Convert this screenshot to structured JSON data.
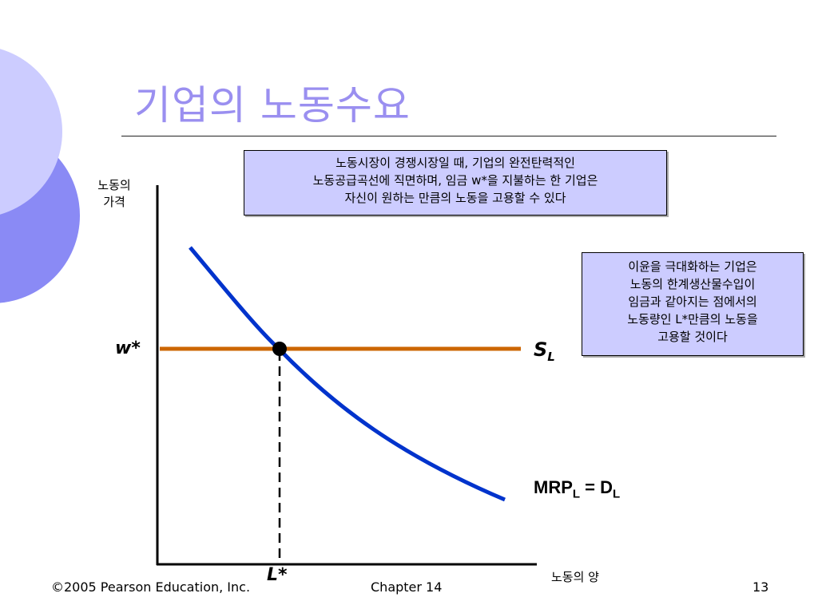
{
  "slide": {
    "title": "기업의 노동수요",
    "box1_lines": [
      "노동시장이 경쟁시장일 때, 기업의 완전탄력적인",
      "노동공급곡선에 직면하며, 임금 w*을 지불하는 한 기업은",
      "자신이 원하는 만큼의 노동을 고용할 수 있다"
    ],
    "box2_lines": [
      "이윤을 극대화하는 기업은",
      "노동의 한계생산물수입이",
      "임금과 같아지는 점에서의",
      "노동량인 L*만큼의 노동을",
      "고용할 것이다"
    ],
    "axis": {
      "y_label_1": "노동의",
      "y_label_2": "가격",
      "x_label": "노동의 양",
      "w_label": "w*",
      "l_label": "L*"
    },
    "curves": {
      "supply_main": "S",
      "supply_sub": "L",
      "demand_a": "MRP",
      "demand_a_sub": "L",
      "demand_eq": " = D",
      "demand_b_sub": "L"
    },
    "footer": {
      "copyright": "©2005 Pearson Education, Inc.",
      "chapter": "Chapter 14",
      "page": "13"
    },
    "colors": {
      "supply": "#cc6600",
      "demand": "#0033cc",
      "box_fill": "#ccccff",
      "title": "#9a8ff0",
      "deco_light": "#ccccff",
      "deco_dark": "#8888ff"
    }
  }
}
